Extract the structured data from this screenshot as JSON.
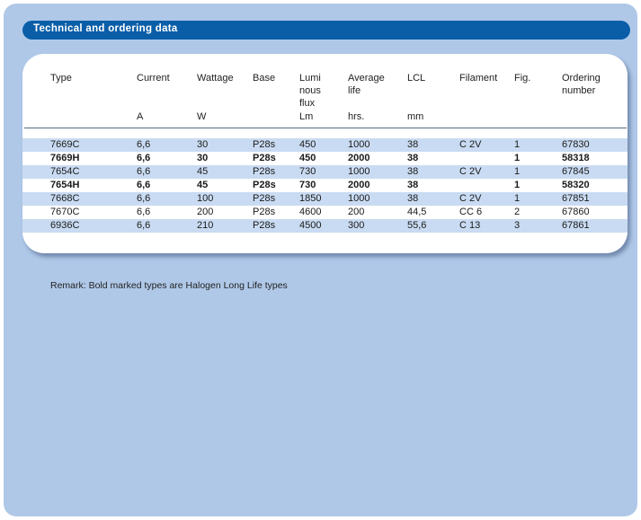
{
  "section_title": "Technical and ordering data",
  "columns": [
    {
      "key": "type",
      "label": "Type",
      "unit": ""
    },
    {
      "key": "current",
      "label": "Current",
      "unit": "A"
    },
    {
      "key": "wattage",
      "label": "Wattage",
      "unit": "W"
    },
    {
      "key": "base",
      "label": "Base",
      "unit": ""
    },
    {
      "key": "flux",
      "label": "Lumi\nnous\nflux",
      "unit": "Lm"
    },
    {
      "key": "life",
      "label": "Average\nlife",
      "unit": "hrs."
    },
    {
      "key": "lcl",
      "label": "LCL",
      "unit": "mm"
    },
    {
      "key": "filament",
      "label": "Filament",
      "unit": ""
    },
    {
      "key": "fig",
      "label": "Fig.",
      "unit": ""
    },
    {
      "key": "order",
      "label": "Ordering\nnumber",
      "unit": ""
    }
  ],
  "rows": [
    {
      "bold": false,
      "cells": [
        "7669C",
        "6,6",
        "30",
        "P28s",
        "450",
        "1000",
        "38",
        "C 2V",
        "1",
        "67830"
      ]
    },
    {
      "bold": true,
      "cells": [
        "7669H",
        "6,6",
        "30",
        "P28s",
        "450",
        "2000",
        "38",
        "",
        "1",
        "58318"
      ]
    },
    {
      "bold": false,
      "cells": [
        "7654C",
        "6,6",
        "45",
        "P28s",
        "730",
        "1000",
        "38",
        "C 2V",
        "1",
        "67845"
      ]
    },
    {
      "bold": true,
      "cells": [
        "7654H",
        "6,6",
        "45",
        "P28s",
        "730",
        "2000",
        "38",
        "",
        "1",
        "58320"
      ]
    },
    {
      "bold": false,
      "cells": [
        "7668C",
        "6,6",
        "100",
        "P28s",
        "1850",
        "1000",
        "38",
        "C 2V",
        "1",
        "67851"
      ]
    },
    {
      "bold": false,
      "cells": [
        "7670C",
        "6,6",
        "200",
        "P28s",
        "4600",
        "200",
        "44,5",
        "CC 6",
        "2",
        "67860"
      ]
    },
    {
      "bold": false,
      "cells": [
        "6936C",
        "6,6",
        "210",
        "P28s",
        "4500",
        "300",
        "55,6",
        "C 13",
        "3",
        "67861"
      ]
    }
  ],
  "remark": "Remark: Bold marked types are Halogen Long Life types"
}
